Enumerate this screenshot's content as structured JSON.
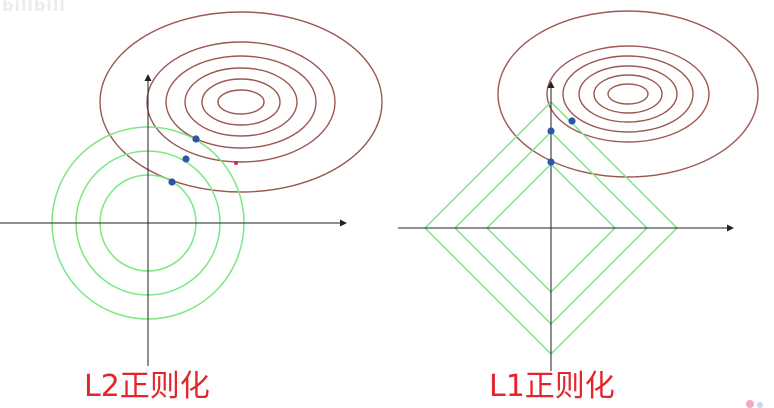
{
  "watermark_text": "bilibili",
  "colors": {
    "ellipse": "#9c5752",
    "circle": "#7de883",
    "diamond": "#84e28a",
    "axis": "#222222",
    "point": "#2a58a8",
    "star": "#e0293a",
    "caption": "#e3262b"
  },
  "left_panel": {
    "caption": "L2正则化",
    "tangent_points": 3,
    "contour_ellipses": 6,
    "constraint_circles": 3
  },
  "right_panel": {
    "caption": "L1正则化",
    "tangent_points": 3,
    "contour_ellipses": 6,
    "constraint_diamonds": 3
  }
}
